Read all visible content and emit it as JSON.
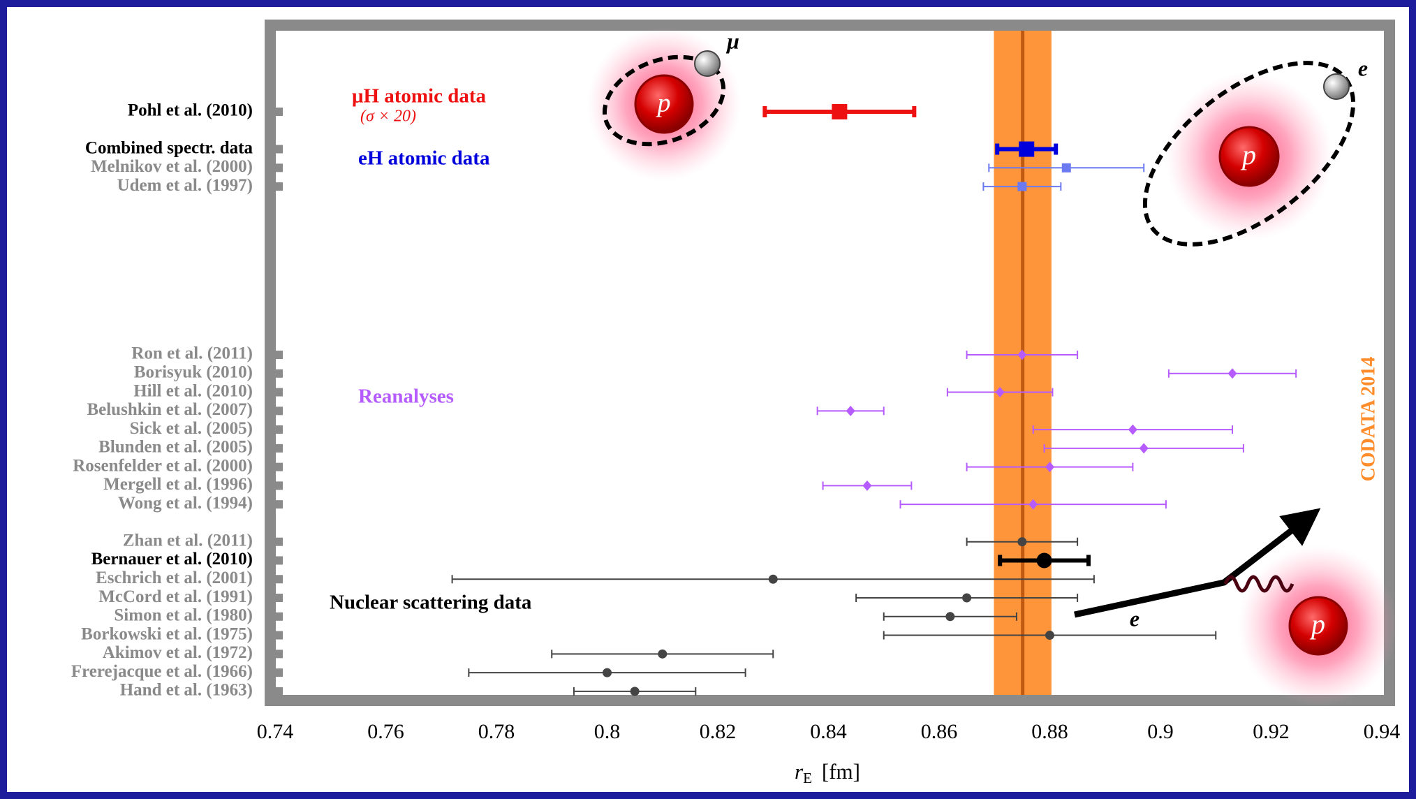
{
  "chart_data": {
    "type": "errorbar",
    "xlabel": {
      "symbol": "r",
      "subscript": "E",
      "unit": "[fm]"
    },
    "xlim": [
      0.74,
      0.94
    ],
    "xticks": [
      0.74,
      0.76,
      0.78,
      0.8,
      0.82,
      0.84,
      0.86,
      0.88,
      0.9,
      0.92,
      0.94
    ],
    "categories": [
      "Pohl et al. (2010)",
      null,
      "Combined spectr. data",
      "Melnikov et al. (2000)",
      "Udem et al. (1997)",
      null,
      null,
      null,
      null,
      null,
      null,
      null,
      null,
      "Ron et al. (2011)",
      "Borisyuk (2010)",
      "Hill et al. (2010)",
      "Belushkin et al. (2007)",
      "Sick et al. (2005)",
      "Blunden et al. (2005)",
      "Rosenfelder et al. (2000)",
      "Mergell et al. (1996)",
      "Wong et al. (1994)",
      null,
      "Zhan et al. (2011)",
      "Bernauer et al. (2010)",
      "Eschrich et al. (2001)",
      "McCord et al. (1991)",
      "Simon et al. (1980)",
      "Borkowski et al. (1975)",
      "Akimov et al. (1972)",
      "Frerejacque et al. (1966)",
      "Hand et al. (1963)"
    ],
    "highlighted_rows": [
      0,
      2,
      24
    ],
    "series": [
      {
        "name": "μH atomic data",
        "color": "#ee1111",
        "highlight_color": "#ee1111",
        "marker": "square",
        "values": [
          0.842,
          null,
          null,
          null,
          null,
          null,
          null,
          null,
          null,
          null,
          null,
          null,
          null,
          null,
          null,
          null,
          null,
          null,
          null,
          null,
          null,
          null,
          null,
          null,
          null,
          null,
          null,
          null,
          null,
          null,
          null,
          null
        ],
        "errors": [
          0.0135,
          null,
          null,
          null,
          null,
          null,
          null,
          null,
          null,
          null,
          null,
          null,
          null,
          null,
          null,
          null,
          null,
          null,
          null,
          null,
          null,
          null,
          null,
          null,
          null,
          null,
          null,
          null,
          null,
          null,
          null,
          null
        ]
      },
      {
        "name": "eH atomic data",
        "color": "#6b7af0",
        "highlight_color": "#0000dd",
        "marker": "square",
        "values": [
          null,
          null,
          0.8758,
          0.883,
          0.875,
          null,
          null,
          null,
          null,
          null,
          null,
          null,
          null,
          null,
          null,
          null,
          null,
          null,
          null,
          null,
          null,
          null,
          null,
          null,
          null,
          null,
          null,
          null,
          null,
          null,
          null,
          null
        ],
        "errors": [
          null,
          null,
          0.0053,
          0.014,
          0.007,
          null,
          null,
          null,
          null,
          null,
          null,
          null,
          null,
          null,
          null,
          null,
          null,
          null,
          null,
          null,
          null,
          null,
          null,
          null,
          null,
          null,
          null,
          null,
          null,
          null,
          null,
          null
        ]
      },
      {
        "name": "Reanalyses",
        "color": "#b65cff",
        "highlight_color": "#b65cff",
        "marker": "diamond",
        "values": [
          null,
          null,
          null,
          null,
          null,
          null,
          null,
          null,
          null,
          null,
          null,
          null,
          null,
          0.875,
          0.913,
          0.871,
          0.844,
          0.895,
          0.897,
          0.88,
          0.847,
          0.877,
          null,
          null,
          null,
          null,
          null,
          null,
          null,
          null,
          null,
          null
        ],
        "errors": [
          null,
          null,
          null,
          null,
          null,
          null,
          null,
          null,
          null,
          null,
          null,
          null,
          null,
          0.01,
          0.0115,
          0.0095,
          0.006,
          0.018,
          0.018,
          0.015,
          0.008,
          0.024,
          null,
          null,
          null,
          null,
          null,
          null,
          null,
          null,
          null,
          null
        ]
      },
      {
        "name": "Nuclear scattering data",
        "color": "#444444",
        "highlight_color": "#000000",
        "marker": "circle",
        "values": [
          null,
          null,
          null,
          null,
          null,
          null,
          null,
          null,
          null,
          null,
          null,
          null,
          null,
          null,
          null,
          null,
          null,
          null,
          null,
          null,
          null,
          null,
          null,
          0.875,
          0.879,
          0.83,
          0.865,
          0.862,
          0.88,
          0.81,
          0.8,
          0.805
        ],
        "errors": [
          null,
          null,
          null,
          null,
          null,
          null,
          null,
          null,
          null,
          null,
          null,
          null,
          null,
          null,
          null,
          null,
          null,
          null,
          null,
          null,
          null,
          null,
          null,
          0.01,
          0.008,
          0.058,
          0.02,
          0.012,
          0.03,
          0.02,
          0.025,
          0.011
        ]
      }
    ],
    "band": {
      "label": "CODATA 2014",
      "value": 0.8751,
      "error": 0.0052,
      "color": "#ff8c2a"
    },
    "annotations": [
      "(σ × 20)",
      "p",
      "μ",
      "p",
      "e",
      "p",
      "e"
    ]
  }
}
